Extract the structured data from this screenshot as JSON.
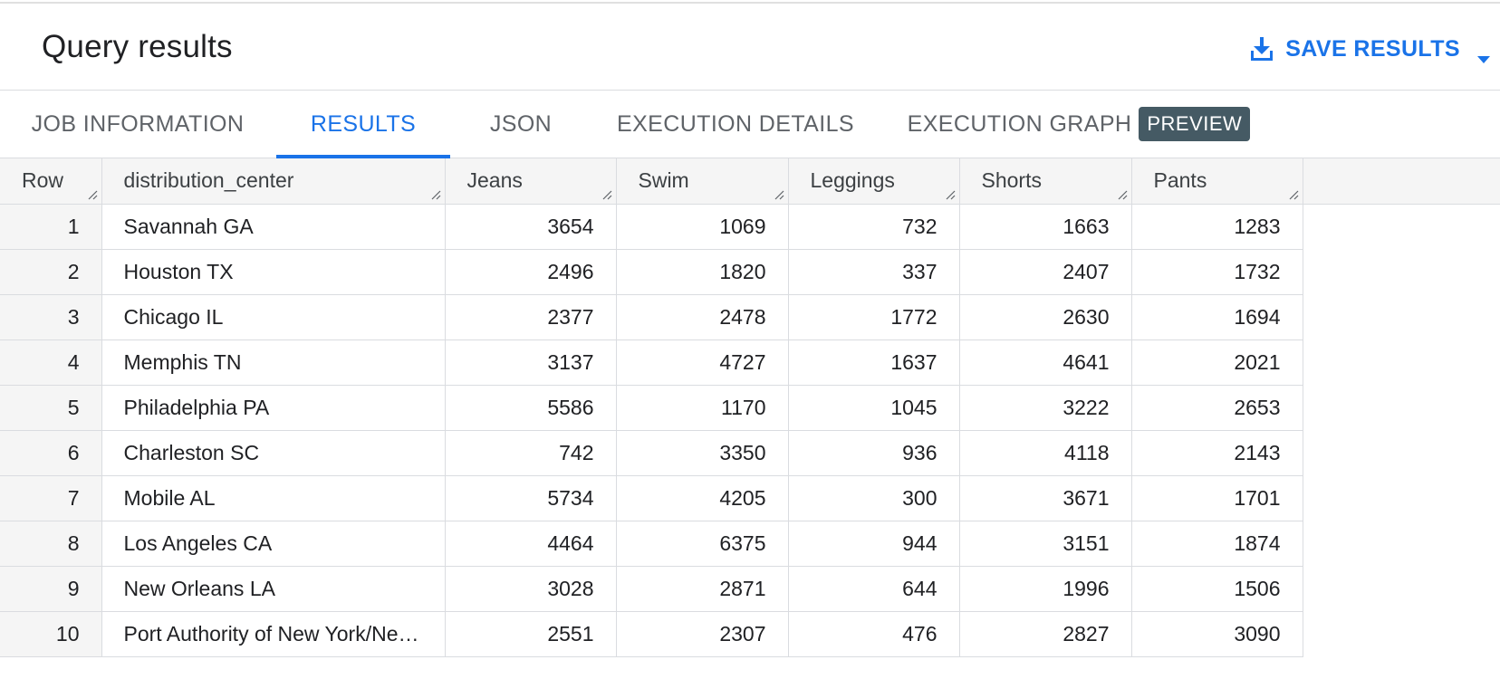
{
  "header": {
    "title": "Query results",
    "save_label": "SAVE RESULTS"
  },
  "tabs": [
    {
      "label": "JOB INFORMATION"
    },
    {
      "label": "RESULTS"
    },
    {
      "label": "JSON"
    },
    {
      "label": "EXECUTION DETAILS"
    },
    {
      "label": "EXECUTION GRAPH",
      "badge": "PREVIEW"
    }
  ],
  "active_tab": "RESULTS",
  "colors": {
    "accent": "#1a73e8",
    "badge_bg": "#455a64",
    "header_bg": "#f5f5f5",
    "grid_line": "#dadce0"
  },
  "table": {
    "columns": [
      "Row",
      "distribution_center",
      "Jeans",
      "Swim",
      "Leggings",
      "Shorts",
      "Pants"
    ],
    "rows": [
      {
        "row": "1",
        "distribution_center": "Savannah GA",
        "jeans": "3654",
        "swim": "1069",
        "leggings": "732",
        "shorts": "1663",
        "pants": "1283"
      },
      {
        "row": "2",
        "distribution_center": "Houston TX",
        "jeans": "2496",
        "swim": "1820",
        "leggings": "337",
        "shorts": "2407",
        "pants": "1732"
      },
      {
        "row": "3",
        "distribution_center": "Chicago IL",
        "jeans": "2377",
        "swim": "2478",
        "leggings": "1772",
        "shorts": "2630",
        "pants": "1694"
      },
      {
        "row": "4",
        "distribution_center": "Memphis TN",
        "jeans": "3137",
        "swim": "4727",
        "leggings": "1637",
        "shorts": "4641",
        "pants": "2021"
      },
      {
        "row": "5",
        "distribution_center": "Philadelphia PA",
        "jeans": "5586",
        "swim": "1170",
        "leggings": "1045",
        "shorts": "3222",
        "pants": "2653"
      },
      {
        "row": "6",
        "distribution_center": "Charleston SC",
        "jeans": "742",
        "swim": "3350",
        "leggings": "936",
        "shorts": "4118",
        "pants": "2143"
      },
      {
        "row": "7",
        "distribution_center": "Mobile AL",
        "jeans": "5734",
        "swim": "4205",
        "leggings": "300",
        "shorts": "3671",
        "pants": "1701"
      },
      {
        "row": "8",
        "distribution_center": "Los Angeles CA",
        "jeans": "4464",
        "swim": "6375",
        "leggings": "944",
        "shorts": "3151",
        "pants": "1874"
      },
      {
        "row": "9",
        "distribution_center": "New Orleans LA",
        "jeans": "3028",
        "swim": "2871",
        "leggings": "644",
        "shorts": "1996",
        "pants": "1506"
      },
      {
        "row": "10",
        "distribution_center": "Port Authority of New York/Ne…",
        "jeans": "2551",
        "swim": "2307",
        "leggings": "476",
        "shorts": "2827",
        "pants": "3090"
      }
    ]
  }
}
